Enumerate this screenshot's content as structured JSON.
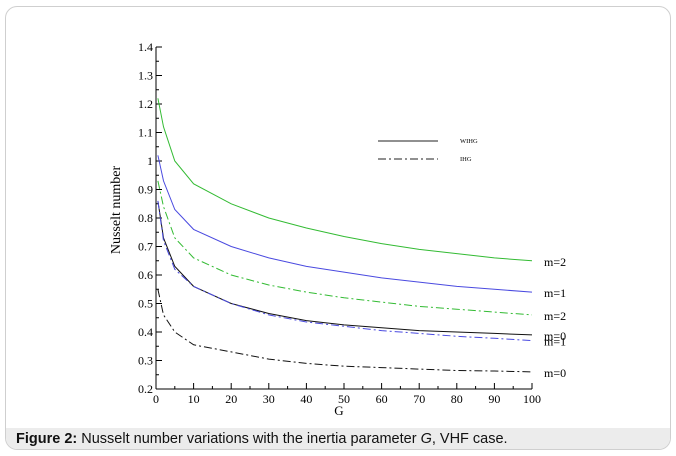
{
  "chart_data": {
    "type": "line",
    "xlabel": "G",
    "ylabel": "Nusselt number",
    "xlim": [
      0,
      100
    ],
    "ylim": [
      0.2,
      1.4
    ],
    "x_ticks": [
      "0",
      "10",
      "20",
      "30",
      "40",
      "50",
      "60",
      "70",
      "80",
      "90",
      "100"
    ],
    "y_ticks": [
      "0.2",
      "0.3",
      "0.4",
      "0.5",
      "0.6",
      "0.7",
      "0.8",
      "0.9",
      "1",
      "1.1",
      "1.2",
      "1.3",
      "1.4"
    ],
    "legend": [
      {
        "label": "WIHG",
        "style": "solid"
      },
      {
        "label": "IHG",
        "style": "dash-dot"
      }
    ],
    "legend_placement": "upper-right",
    "series": [
      {
        "label": "m=2",
        "case": "WIHG",
        "color": "#33bb33",
        "style": "solid",
        "x": [
          0.5,
          2,
          5,
          10,
          20,
          30,
          40,
          50,
          60,
          70,
          80,
          90,
          100
        ],
        "y": [
          1.22,
          1.12,
          1.0,
          0.92,
          0.85,
          0.8,
          0.765,
          0.735,
          0.71,
          0.69,
          0.675,
          0.66,
          0.65
        ]
      },
      {
        "label": "m=1",
        "case": "WIHG",
        "color": "#4a4ae0",
        "style": "solid",
        "x": [
          0.5,
          2,
          5,
          10,
          20,
          30,
          40,
          50,
          60,
          70,
          80,
          90,
          100
        ],
        "y": [
          1.02,
          0.93,
          0.83,
          0.76,
          0.7,
          0.66,
          0.63,
          0.61,
          0.59,
          0.575,
          0.56,
          0.55,
          0.54
        ]
      },
      {
        "label": "m=2",
        "case": "IHG",
        "color": "#33bb33",
        "style": "dashdot",
        "x": [
          0.5,
          2,
          5,
          10,
          20,
          30,
          40,
          50,
          60,
          70,
          80,
          90,
          100
        ],
        "y": [
          0.93,
          0.84,
          0.73,
          0.66,
          0.6,
          0.565,
          0.54,
          0.52,
          0.505,
          0.49,
          0.48,
          0.47,
          0.46
        ]
      },
      {
        "label": "m=0",
        "case": "WIHG",
        "color": "#111111",
        "style": "solid",
        "x": [
          0.5,
          2,
          5,
          10,
          20,
          30,
          40,
          50,
          60,
          70,
          80,
          90,
          100
        ],
        "y": [
          0.86,
          0.73,
          0.63,
          0.56,
          0.5,
          0.465,
          0.44,
          0.425,
          0.415,
          0.405,
          0.4,
          0.395,
          0.39
        ]
      },
      {
        "label": "m=1",
        "case": "IHG",
        "color": "#4a4ae0",
        "style": "dashdot",
        "x": [
          0.5,
          2,
          5,
          10,
          20,
          30,
          40,
          50,
          60,
          70,
          80,
          90,
          100
        ],
        "y": [
          0.86,
          0.72,
          0.62,
          0.56,
          0.5,
          0.46,
          0.435,
          0.42,
          0.405,
          0.395,
          0.385,
          0.378,
          0.37
        ]
      },
      {
        "label": "m=0",
        "case": "IHG",
        "color": "#111111",
        "style": "dashdot",
        "x": [
          0.5,
          2,
          5,
          10,
          20,
          30,
          40,
          50,
          60,
          70,
          80,
          90,
          100
        ],
        "y": [
          0.55,
          0.46,
          0.4,
          0.355,
          0.33,
          0.305,
          0.29,
          0.28,
          0.275,
          0.27,
          0.265,
          0.263,
          0.26
        ]
      }
    ],
    "end_labels": [
      "m=2",
      "m=1",
      "m=2",
      "m=0",
      "m=1",
      "m=0"
    ]
  },
  "caption": {
    "prefix": "Figure 2:",
    "text_before": " Nusselt number variations with the inertia parameter ",
    "italic": "G",
    "text_after": ", VHF case."
  }
}
